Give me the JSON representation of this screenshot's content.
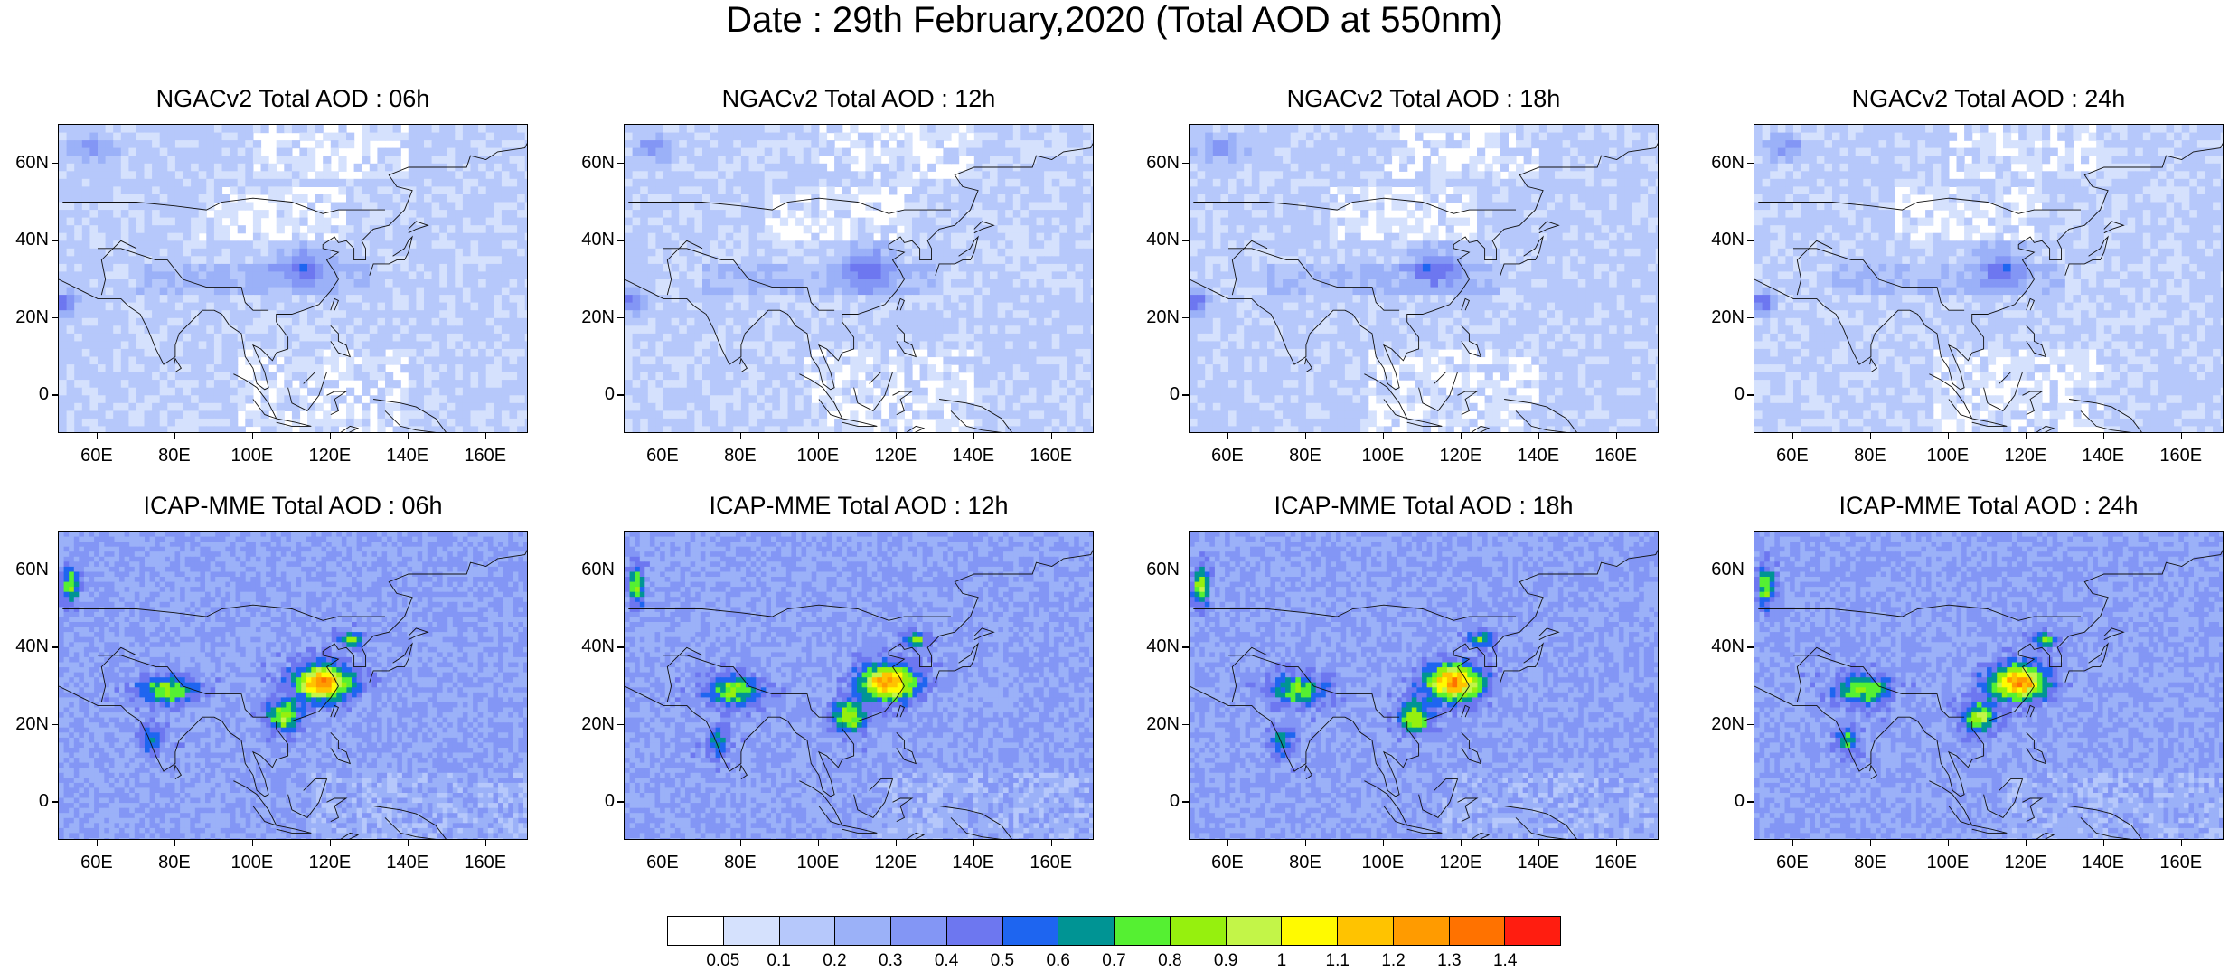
{
  "title": "Date : 29th February,2020 (Total AOD at 550nm)",
  "panels": [
    {
      "id": "ngac-06",
      "model": "NGAC",
      "title": "NGACv2 Total AOD : 06h"
    },
    {
      "id": "ngac-12",
      "model": "NGAC",
      "title": "NGACv2 Total AOD : 12h"
    },
    {
      "id": "ngac-18",
      "model": "NGAC",
      "title": "NGACv2 Total AOD : 18h"
    },
    {
      "id": "ngac-24",
      "model": "NGAC",
      "title": "NGACv2 Total AOD : 24h"
    },
    {
      "id": "icap-06",
      "model": "ICAP",
      "title": "ICAP-MME Total AOD : 06h"
    },
    {
      "id": "icap-12",
      "model": "ICAP",
      "title": "ICAP-MME Total AOD : 12h"
    },
    {
      "id": "icap-18",
      "model": "ICAP",
      "title": "ICAP-MME Total AOD : 18h"
    },
    {
      "id": "icap-24",
      "model": "ICAP",
      "title": "ICAP-MME Total AOD : 24h"
    }
  ],
  "lat_ticks": [
    "60N",
    "40N",
    "20N",
    "0"
  ],
  "lon_ticks": [
    "60E",
    "80E",
    "100E",
    "120E",
    "140E",
    "160E"
  ],
  "colorbar": {
    "colors": [
      "#ffffff",
      "#d5e1fd",
      "#b6c8fb",
      "#9bb1f8",
      "#8396f5",
      "#6d77f0",
      "#1e65f0",
      "#009494",
      "#55f032",
      "#96f00e",
      "#c3f548",
      "#fffa00",
      "#ffc300",
      "#ff9b00",
      "#ff7200",
      "#ff1d10"
    ],
    "labels": [
      "0.05",
      "0.1",
      "0.2",
      "0.3",
      "0.4",
      "0.5",
      "0.6",
      "0.7",
      "0.8",
      "0.9",
      "1",
      "1.1",
      "1.2",
      "1.3",
      "1.4"
    ]
  }
}
